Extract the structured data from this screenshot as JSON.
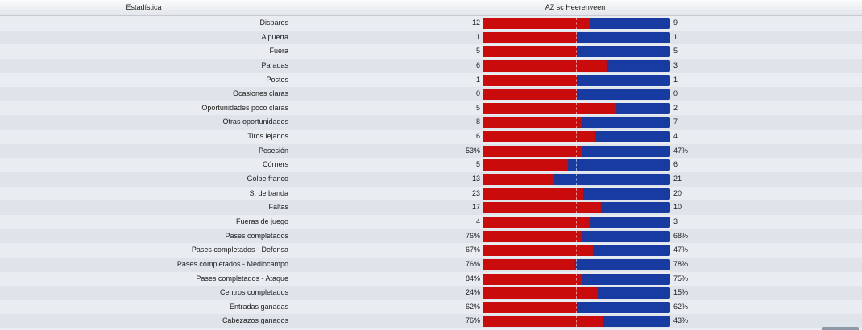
{
  "header": {
    "stat_label": "Estadística",
    "teams": "AZ  sc Heerenveen"
  },
  "colors": {
    "home": "#c90b0b",
    "away": "#173ba0"
  },
  "rows": [
    {
      "label": "Disparos",
      "home": "12",
      "away": "9",
      "home_share": 0.571
    },
    {
      "label": "A puerta",
      "home": "1",
      "away": "1",
      "home_share": 0.5
    },
    {
      "label": "Fuera",
      "home": "5",
      "away": "5",
      "home_share": 0.5
    },
    {
      "label": "Paradas",
      "home": "6",
      "away": "3",
      "home_share": 0.667
    },
    {
      "label": "Postes",
      "home": "1",
      "away": "1",
      "home_share": 0.5
    },
    {
      "label": "Ocasiones claras",
      "home": "0",
      "away": "0",
      "home_share": 0.5
    },
    {
      "label": "Oportunidades poco claras",
      "home": "5",
      "away": "2",
      "home_share": 0.714
    },
    {
      "label": "Otras oportunidades",
      "home": "8",
      "away": "7",
      "home_share": 0.533
    },
    {
      "label": "Tiros lejanos",
      "home": "6",
      "away": "4",
      "home_share": 0.6
    },
    {
      "label": "Posesión",
      "home": "53%",
      "away": "47%",
      "home_share": 0.53
    },
    {
      "label": "Córners",
      "home": "5",
      "away": "6",
      "home_share": 0.455
    },
    {
      "label": "Golpe franco",
      "home": "13",
      "away": "21",
      "home_share": 0.382
    },
    {
      "label": "S. de banda",
      "home": "23",
      "away": "20",
      "home_share": 0.535
    },
    {
      "label": "Faltas",
      "home": "17",
      "away": "10",
      "home_share": 0.63
    },
    {
      "label": "Fueras de juego",
      "home": "4",
      "away": "3",
      "home_share": 0.571
    },
    {
      "label": "Pases completados",
      "home": "76%",
      "away": "68%",
      "home_share": 0.528
    },
    {
      "label": "Pases completados - Defensa",
      "home": "67%",
      "away": "47%",
      "home_share": 0.588
    },
    {
      "label": "Pases completados - Mediocampo",
      "home": "76%",
      "away": "78%",
      "home_share": 0.494
    },
    {
      "label": "Pases completados - Ataque",
      "home": "84%",
      "away": "75%",
      "home_share": 0.528
    },
    {
      "label": "Centros completados",
      "home": "24%",
      "away": "15%",
      "home_share": 0.615
    },
    {
      "label": "Entradas ganadas",
      "home": "62%",
      "away": "62%",
      "home_share": 0.5
    },
    {
      "label": "Cabezazos ganados",
      "home": "76%",
      "away": "43%",
      "home_share": 0.639
    }
  ]
}
